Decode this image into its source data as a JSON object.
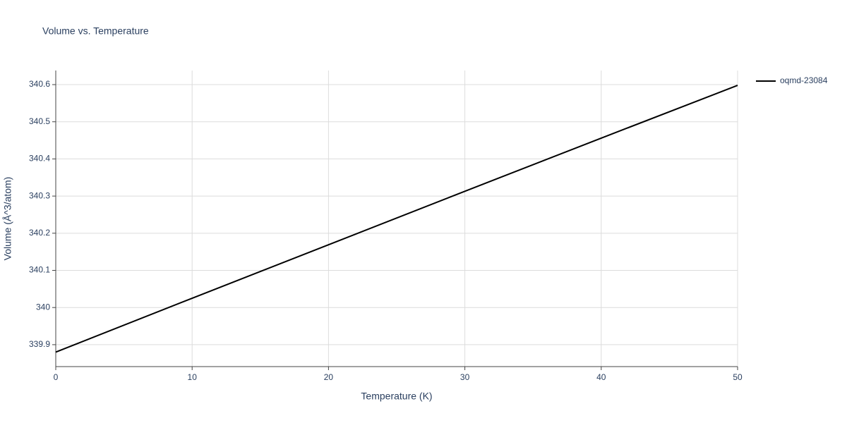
{
  "chart_data": {
    "type": "line",
    "title": "Volume vs. Temperature",
    "x_label": "Temperature (K)",
    "y_label": "Volume (Å^3/atom)",
    "x": [
      0,
      10,
      20,
      30,
      40,
      50
    ],
    "series": [
      {
        "name": "oqmd-23084",
        "color": "#000000",
        "values": [
          339.88,
          340.025,
          340.169,
          340.313,
          340.456,
          340.598
        ]
      }
    ],
    "xlim": [
      0,
      50
    ],
    "xticks": [
      0,
      10,
      20,
      30,
      40,
      50
    ],
    "ylim": [
      339.841,
      340.638
    ],
    "yticks": [
      339.9,
      340,
      340.1,
      340.2,
      340.3,
      340.4,
      340.5,
      340.6
    ],
    "grid": true,
    "legend": "right"
  }
}
